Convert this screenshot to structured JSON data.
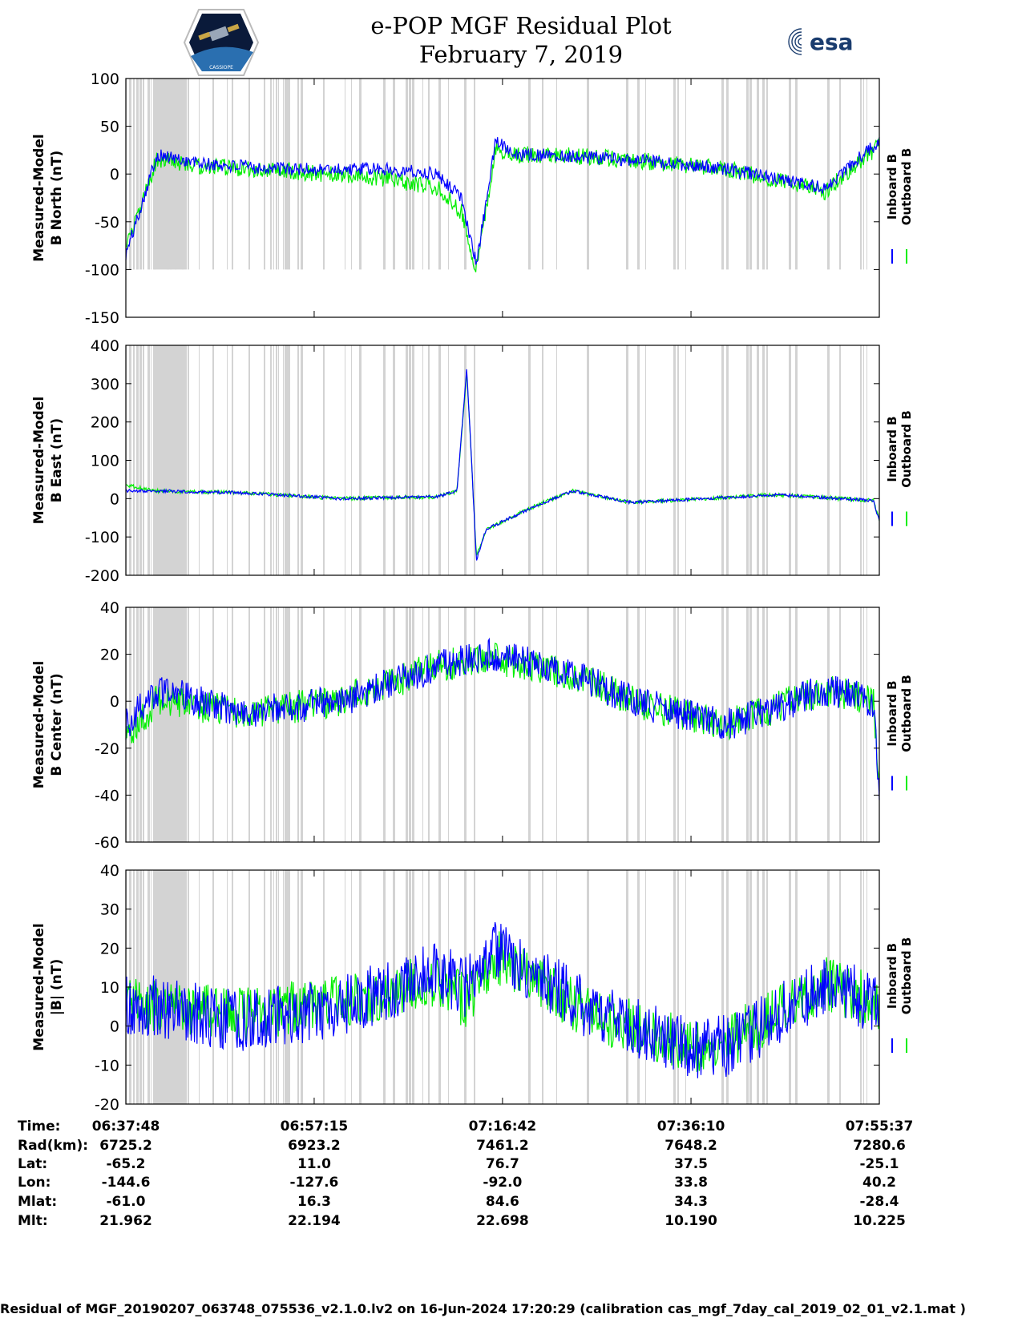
{
  "page": {
    "title": "e-POP MGF Residual Plot",
    "date": "February 7, 2019",
    "esa_logo_text": "esa",
    "left_logo_text": "CASSIOPE",
    "footer": "Residual of MGF_20190207_063748_075536_v2.1.0.lv2 on 16-Jun-2024 17:20:29 (calibration cas_mgf_7day_cal_2019_02_01_v2.1.mat )"
  },
  "colors": {
    "inboard": "#0000ff",
    "outboard": "#00ee00",
    "shade": "#d3d3d3"
  },
  "ephemeris": {
    "labels": [
      "Time:",
      "Rad(km):",
      "Lat:",
      "Lon:",
      "Mlat:",
      "Mlt:"
    ],
    "columns": [
      [
        "06:37:48",
        "6725.2",
        "-65.2",
        "-144.6",
        "-61.0",
        "21.962"
      ],
      [
        "06:57:15",
        "6923.2",
        "11.0",
        "-127.6",
        "16.3",
        "22.194"
      ],
      [
        "07:16:42",
        "7461.2",
        "76.7",
        "-92.0",
        "84.6",
        "22.698"
      ],
      [
        "07:36:10",
        "7648.2",
        "37.5",
        "33.8",
        "34.3",
        "10.190"
      ],
      [
        "07:55:37",
        "7280.6",
        "-25.1",
        "40.2",
        "-28.4",
        "10.225"
      ]
    ]
  },
  "chart_data": [
    {
      "type": "line",
      "ylabel": [
        "Measured-Model",
        "B North (nT)"
      ],
      "ylim": [
        -150,
        100
      ],
      "yticks": [
        100,
        50,
        0,
        -50,
        -100,
        -150
      ],
      "shade_range": [
        -100,
        100
      ],
      "legend": [
        "Inboard B",
        "Outboard B"
      ],
      "x": [
        "06:37:48",
        "06:41:00",
        "06:46:00",
        "06:55:00",
        "07:05:00",
        "07:10:00",
        "07:12:30",
        "07:14:00",
        "07:16:00",
        "07:18:30",
        "07:22:00",
        "07:30:00",
        "07:40:00",
        "07:50:00",
        "07:55:37"
      ],
      "series": [
        {
          "name": "Inboard B",
          "values": [
            -85,
            20,
            10,
            5,
            5,
            0,
            -25,
            -95,
            35,
            20,
            20,
            15,
            5,
            -15,
            35
          ],
          "noise": 7
        },
        {
          "name": "Outboard B",
          "values": [
            -80,
            15,
            8,
            3,
            -5,
            -15,
            -40,
            -100,
            25,
            20,
            20,
            15,
            5,
            -18,
            30
          ],
          "noise": 9
        }
      ]
    },
    {
      "type": "line",
      "ylabel": [
        "Measured-Model",
        "B East (nT)"
      ],
      "ylim": [
        -200,
        400
      ],
      "yticks": [
        400,
        300,
        200,
        100,
        0,
        -100,
        -200
      ],
      "shade_range": [
        -200,
        400
      ],
      "legend": [
        "Inboard B",
        "Outboard B"
      ],
      "x": [
        "06:37:48",
        "06:41:00",
        "06:50:00",
        "07:00:00",
        "07:10:00",
        "07:12:00",
        "07:13:00",
        "07:13:30",
        "07:14:00",
        "07:15:00",
        "07:20:00",
        "07:24:00",
        "07:30:00",
        "07:45:00",
        "07:55:00",
        "07:55:37"
      ],
      "series": [
        {
          "name": "Inboard B",
          "values": [
            20,
            20,
            15,
            0,
            5,
            20,
            340,
            100,
            -160,
            -80,
            -20,
            20,
            -10,
            10,
            -5,
            -60
          ],
          "noise": 4
        },
        {
          "name": "Outboard B",
          "values": [
            35,
            20,
            15,
            0,
            5,
            20,
            330,
            100,
            -150,
            -80,
            -20,
            20,
            -10,
            10,
            -5,
            -55
          ],
          "noise": 5
        }
      ]
    },
    {
      "type": "line",
      "ylabel": [
        "Measured-Model",
        "B Center (nT)"
      ],
      "ylim": [
        -60,
        40
      ],
      "yticks": [
        40,
        20,
        0,
        -20,
        -40,
        -60
      ],
      "shade_range": [
        -60,
        40
      ],
      "legend": [
        "Inboard B",
        "Outboard B"
      ],
      "x": [
        "06:37:48",
        "06:41:00",
        "06:50:00",
        "07:00:00",
        "07:10:00",
        "07:16:00",
        "07:25:00",
        "07:30:00",
        "07:40:00",
        "07:50:00",
        "07:55:00",
        "07:55:37"
      ],
      "series": [
        {
          "name": "Inboard B",
          "values": [
            -10,
            5,
            -5,
            0,
            15,
            20,
            10,
            0,
            -10,
            5,
            0,
            -40
          ],
          "noise": 7
        },
        {
          "name": "Outboard B",
          "values": [
            -15,
            0,
            -5,
            0,
            15,
            18,
            10,
            0,
            -10,
            5,
            0,
            -38
          ],
          "noise": 7
        }
      ]
    },
    {
      "type": "line",
      "ylabel": [
        "Measured-Model",
        "|B| (nT)"
      ],
      "ylim": [
        -20,
        40
      ],
      "yticks": [
        40,
        30,
        20,
        10,
        0,
        -10,
        -20
      ],
      "shade_range": [
        -20,
        40
      ],
      "legend": [
        "Inboard B",
        "Outboard B"
      ],
      "x": [
        "06:37:48",
        "06:41:00",
        "06:50:00",
        "07:00:00",
        "07:10:00",
        "07:13:00",
        "07:16:00",
        "07:25:00",
        "07:36:00",
        "07:40:00",
        "07:50:00",
        "07:55:37"
      ],
      "series": [
        {
          "name": "Inboard B",
          "values": [
            5,
            5,
            1,
            5,
            14,
            10,
            20,
            5,
            -6,
            -5,
            10,
            6
          ],
          "noise": 8
        },
        {
          "name": "Outboard B",
          "values": [
            6,
            5,
            3,
            6,
            12,
            6,
            18,
            4,
            -5,
            -4,
            11,
            6
          ],
          "noise": 7
        }
      ]
    }
  ]
}
